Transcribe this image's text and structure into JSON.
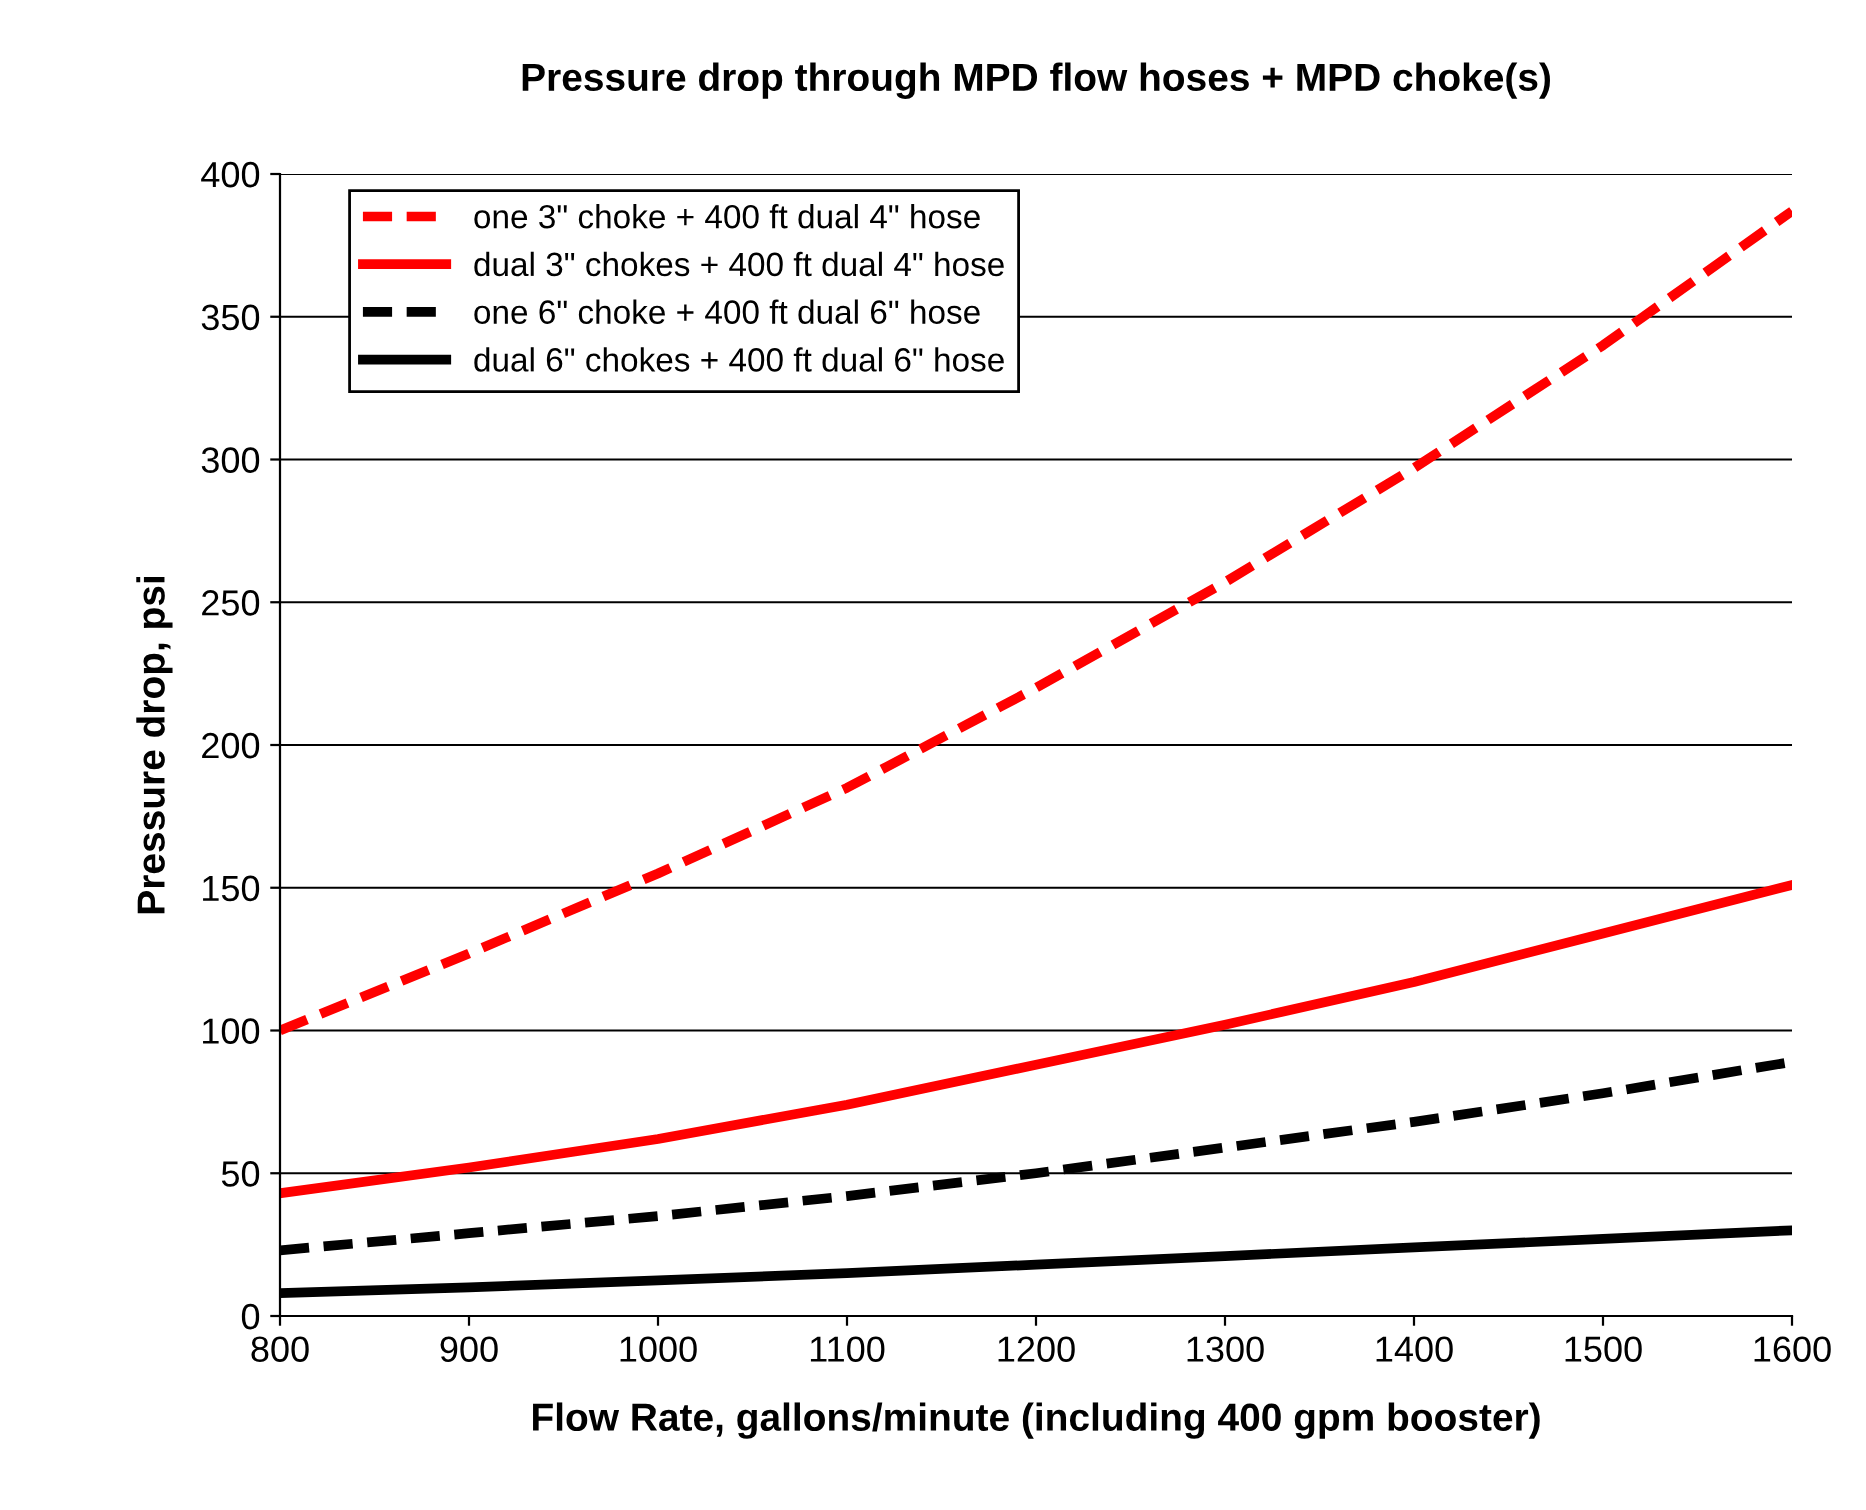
{
  "chart_data": {
    "type": "line",
    "title": "Pressure drop through MPD flow hoses + MPD choke(s)",
    "xlabel": "Flow Rate, gallons/minute (including 400 gpm booster)",
    "ylabel": "Pressure drop, psi",
    "x": [
      800,
      900,
      1000,
      1100,
      1200,
      1300,
      1400,
      1500,
      1600
    ],
    "series": [
      {
        "name": "one 3\" choke + 400 ft dual 4\" hose",
        "color": "#ff0000",
        "line_style": "dashed",
        "values": [
          100,
          127,
          155,
          185,
          220,
          257,
          297,
          340,
          387
        ]
      },
      {
        "name": "dual 3\" chokes + 400 ft dual 4\" hose",
        "color": "#ff0000",
        "line_style": "solid",
        "values": [
          43,
          52,
          62,
          74,
          88,
          102,
          117,
          134,
          151
        ]
      },
      {
        "name": "one 6\" choke + 400 ft dual 6\" hose",
        "color": "#000000",
        "line_style": "dashed",
        "values": [
          23,
          29,
          35,
          42,
          50,
          59,
          68,
          78,
          89
        ]
      },
      {
        "name": "dual 6\" chokes + 400 ft dual 6\" hose",
        "color": "#000000",
        "line_style": "solid",
        "values": [
          8,
          10,
          12.5,
          15,
          18,
          21,
          24,
          27,
          30
        ]
      }
    ],
    "xlim": [
      800,
      1600
    ],
    "xticks": [
      800,
      900,
      1000,
      1100,
      1200,
      1300,
      1400,
      1500,
      1600
    ],
    "ylim": [
      0,
      400
    ],
    "yticks": [
      0,
      50,
      100,
      150,
      200,
      250,
      300,
      350,
      400
    ],
    "grid": "y",
    "legend": "top left",
    "marker": "none"
  }
}
